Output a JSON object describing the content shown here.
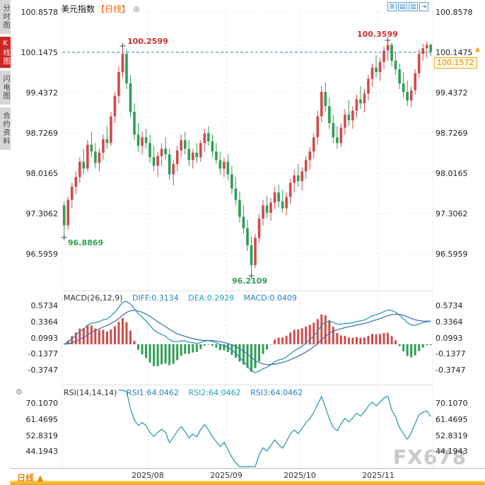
{
  "sidebar": {
    "tabs": [
      {
        "label": "分时图"
      },
      {
        "label": "K线图"
      },
      {
        "label": "闪电图"
      },
      {
        "label": "合约资料"
      }
    ]
  },
  "header": {
    "title": "美元指数",
    "period": "【日线】",
    "add_icon": "⊕"
  },
  "toolbar": {
    "icons": [
      {
        "name": "grid-layout-icon",
        "glyph": "⊞"
      },
      {
        "name": "horizontal-panels-icon",
        "glyph": "▤"
      },
      {
        "name": "vertical-panels-icon",
        "glyph": "▥"
      },
      {
        "name": "collapse-right-icon",
        "glyph": "⇥"
      }
    ]
  },
  "axes": {
    "price": [
      "100.8578",
      "100.1475",
      "99.4372",
      "98.7269",
      "98.0165",
      "97.3062",
      "96.5959"
    ],
    "macd": [
      "0.5734",
      "0.3364",
      "0.0993",
      "-0.1377",
      "-0.3747"
    ],
    "rsi": [
      "70.1070",
      "61.4695",
      "52.8319",
      "44.1943"
    ],
    "x": [
      "2025/08",
      "2025/09",
      "2025/10",
      "2025/11"
    ]
  },
  "price_tag": "100.1572",
  "right_marker": {
    "glyph": "▲"
  },
  "annotations": {
    "high1": "100.2599",
    "high2": "100.3599",
    "low1": "96.8869",
    "low2": "96.2109"
  },
  "macd_header": {
    "name": "MACD(26,12,9)",
    "diff": "DIFF:0.3134",
    "dea": "DEA:0.2929",
    "macd": "MACD:0.0409"
  },
  "rsi_header": {
    "name": "RSI(14,14,14)",
    "rsi1": "RSI1:64.0462",
    "rsi2": "RSI2:64.0462",
    "rsi3": "RSI3:64.0462"
  },
  "icons": {
    "gear": "⚙"
  },
  "bottom": {
    "period": "日线",
    "arrow": "▲"
  },
  "watermark": "FX678",
  "colors": {
    "up": "#d14a4a",
    "down": "#2f9e55",
    "reference_line": "#2f7fd6",
    "diff_line": "#1f8fa8",
    "dea_line": "#3a6db0",
    "rsi_line": "#2196a6",
    "accent_orange": "#f5a623",
    "active_tab": "#cf2626"
  },
  "chart_data": [
    {
      "type": "candlestick",
      "title": "美元指数 日线",
      "y_ticks": [
        100.8578,
        100.1475,
        99.4372,
        98.7269,
        98.0165,
        97.3062,
        96.5959
      ],
      "x_tick_labels": [
        "2025/08",
        "2025/09",
        "2025/10",
        "2025/11"
      ],
      "month_start_indices": [
        22,
        42,
        61,
        81
      ],
      "reference_line": 100.1475,
      "last_price": 100.1572,
      "extremes": {
        "high1": {
          "index": 15,
          "price": 100.2599
        },
        "high2": {
          "index": 83,
          "price": 100.3599
        },
        "low1": {
          "index": 0,
          "price": 96.8869
        },
        "low2": {
          "index": 48,
          "price": 96.2109
        }
      },
      "ohlc": [
        [
          97.45,
          97.52,
          96.8869,
          97.1
        ],
        [
          97.1,
          97.6,
          97.02,
          97.55
        ],
        [
          97.55,
          97.85,
          97.4,
          97.78
        ],
        [
          97.78,
          98.05,
          97.65,
          97.95
        ],
        [
          97.95,
          98.3,
          97.85,
          98.22
        ],
        [
          98.22,
          98.45,
          98.0,
          98.1
        ],
        [
          98.1,
          98.6,
          98.05,
          98.52
        ],
        [
          98.52,
          98.75,
          98.3,
          98.4
        ],
        [
          98.4,
          98.55,
          98.1,
          98.2
        ],
        [
          98.2,
          98.45,
          98.05,
          98.38
        ],
        [
          98.38,
          98.7,
          98.25,
          98.62
        ],
        [
          98.62,
          98.85,
          98.45,
          98.55
        ],
        [
          98.55,
          99.1,
          98.5,
          99.02
        ],
        [
          99.02,
          99.45,
          98.9,
          99.38
        ],
        [
          99.38,
          99.9,
          99.25,
          99.8
        ],
        [
          99.8,
          100.2599,
          99.7,
          100.12
        ],
        [
          100.12,
          100.2,
          99.5,
          99.6
        ],
        [
          99.6,
          99.75,
          99.0,
          99.1
        ],
        [
          99.1,
          99.25,
          98.6,
          98.7
        ],
        [
          98.7,
          98.9,
          98.4,
          98.5
        ],
        [
          98.5,
          98.75,
          98.35,
          98.65
        ],
        [
          98.65,
          98.8,
          98.45,
          98.55
        ],
        [
          98.55,
          98.7,
          98.2,
          98.3
        ],
        [
          98.3,
          98.5,
          98.05,
          98.15
        ],
        [
          98.15,
          98.4,
          97.95,
          98.32
        ],
        [
          98.32,
          98.55,
          98.15,
          98.45
        ],
        [
          98.45,
          98.65,
          98.25,
          98.35
        ],
        [
          98.35,
          98.45,
          97.9,
          98.0
        ],
        [
          98.0,
          98.25,
          97.8,
          98.18
        ],
        [
          98.18,
          98.5,
          98.05,
          98.42
        ],
        [
          98.42,
          98.7,
          98.3,
          98.6
        ],
        [
          98.6,
          98.75,
          98.35,
          98.45
        ],
        [
          98.45,
          98.6,
          98.15,
          98.25
        ],
        [
          98.25,
          98.45,
          98.1,
          98.38
        ],
        [
          98.38,
          98.55,
          98.2,
          98.3
        ],
        [
          98.3,
          98.6,
          98.22,
          98.55
        ],
        [
          98.55,
          98.8,
          98.4,
          98.72
        ],
        [
          98.72,
          98.85,
          98.5,
          98.58
        ],
        [
          98.58,
          98.7,
          98.3,
          98.4
        ],
        [
          98.4,
          98.55,
          98.18,
          98.25
        ],
        [
          98.25,
          98.4,
          98.0,
          98.1
        ],
        [
          98.1,
          98.3,
          97.95,
          98.22
        ],
        [
          98.22,
          98.35,
          97.9,
          98.0
        ],
        [
          98.0,
          98.15,
          97.65,
          97.75
        ],
        [
          97.75,
          97.95,
          97.45,
          97.55
        ],
        [
          97.55,
          97.7,
          97.15,
          97.25
        ],
        [
          97.25,
          97.45,
          96.95,
          97.05
        ],
        [
          97.05,
          97.2,
          96.65,
          96.75
        ],
        [
          96.75,
          96.9,
          96.2109,
          96.4
        ],
        [
          96.4,
          96.95,
          96.35,
          96.88
        ],
        [
          96.88,
          97.3,
          96.8,
          97.22
        ],
        [
          97.22,
          97.55,
          97.1,
          97.45
        ],
        [
          97.45,
          97.62,
          97.22,
          97.32
        ],
        [
          97.32,
          97.58,
          97.18,
          97.5
        ],
        [
          97.5,
          97.78,
          97.38,
          97.68
        ],
        [
          97.68,
          97.82,
          97.42,
          97.52
        ],
        [
          97.52,
          97.72,
          97.32,
          97.4
        ],
        [
          97.4,
          97.68,
          97.28,
          97.6
        ],
        [
          97.6,
          97.92,
          97.48,
          97.85
        ],
        [
          97.85,
          98.08,
          97.68,
          97.98
        ],
        [
          97.98,
          98.18,
          97.78,
          97.88
        ],
        [
          97.88,
          98.12,
          97.72,
          98.05
        ],
        [
          98.05,
          98.32,
          97.92,
          98.25
        ],
        [
          98.25,
          98.48,
          98.08,
          98.4
        ],
        [
          98.4,
          98.72,
          98.28,
          98.65
        ],
        [
          98.65,
          99.12,
          98.52,
          99.02
        ],
        [
          99.02,
          99.55,
          98.92,
          99.45
        ],
        [
          99.45,
          99.62,
          99.1,
          99.2
        ],
        [
          99.2,
          99.35,
          98.8,
          98.9
        ],
        [
          98.9,
          99.05,
          98.55,
          98.65
        ],
        [
          98.65,
          98.85,
          98.45,
          98.55
        ],
        [
          98.55,
          98.9,
          98.48,
          98.82
        ],
        [
          98.82,
          99.15,
          98.7,
          99.05
        ],
        [
          99.05,
          99.3,
          98.85,
          98.95
        ],
        [
          98.95,
          99.2,
          98.8,
          99.12
        ],
        [
          99.12,
          99.4,
          99.0,
          99.32
        ],
        [
          99.32,
          99.55,
          99.15,
          99.25
        ],
        [
          99.25,
          99.5,
          99.1,
          99.42
        ],
        [
          99.42,
          99.75,
          99.3,
          99.68
        ],
        [
          99.68,
          99.95,
          99.55,
          99.88
        ],
        [
          99.88,
          100.1,
          99.7,
          99.8
        ],
        [
          99.8,
          100.05,
          99.65,
          99.98
        ],
        [
          99.98,
          100.25,
          99.85,
          100.18
        ],
        [
          100.18,
          100.3599,
          100.0,
          100.28
        ],
        [
          100.28,
          100.32,
          99.9,
          100.0
        ],
        [
          100.0,
          100.15,
          99.75,
          99.85
        ],
        [
          99.85,
          99.95,
          99.5,
          99.6
        ],
        [
          99.6,
          99.8,
          99.35,
          99.45
        ],
        [
          99.45,
          99.65,
          99.2,
          99.3
        ],
        [
          99.3,
          99.55,
          99.18,
          99.48
        ],
        [
          99.48,
          99.85,
          99.4,
          99.78
        ],
        [
          99.78,
          100.2,
          99.7,
          100.12
        ],
        [
          100.12,
          100.3,
          100.0,
          100.22
        ],
        [
          100.22,
          100.34,
          100.05,
          100.28
        ],
        [
          100.28,
          100.3,
          100.08,
          100.1572
        ]
      ]
    },
    {
      "type": "line",
      "name": "MACD",
      "params": [
        26,
        12,
        9
      ],
      "displayed": {
        "DIFF": 0.3134,
        "DEA": 0.2929,
        "MACD": 0.0409
      },
      "y_ticks": [
        0.5734,
        0.3364,
        0.0993,
        -0.1377,
        -0.3747
      ],
      "series_derived_from_ohlc": true
    },
    {
      "type": "line",
      "name": "RSI",
      "params": [
        14,
        14,
        14
      ],
      "displayed": {
        "RSI1": 64.0462,
        "RSI2": 64.0462,
        "RSI3": 64.0462
      },
      "y_ticks": [
        70.107,
        61.4695,
        52.8319,
        44.1943
      ],
      "series_derived_from_ohlc": true
    }
  ]
}
